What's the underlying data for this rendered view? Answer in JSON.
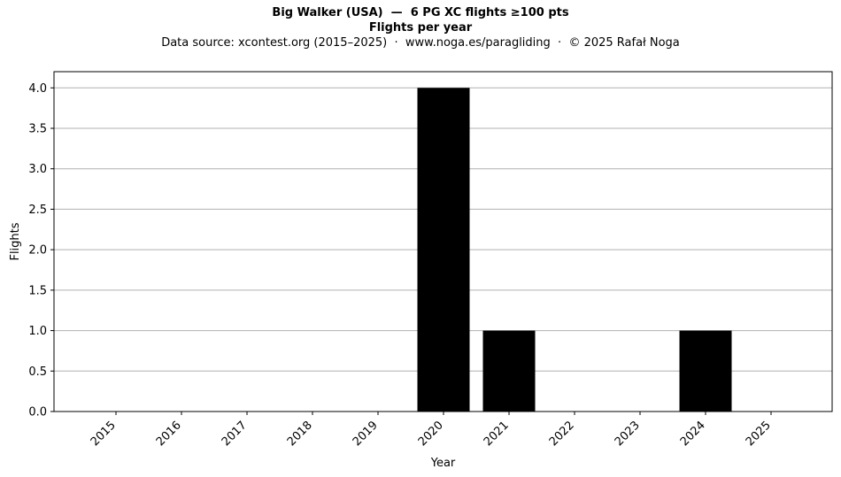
{
  "title": "Big Walker (USA)  —  6 PG XC flights ≥100 pts",
  "subtitle": "Flights per year",
  "source_note": "Data source: xcontest.org (2015–2025)  ·  www.noga.es/paragliding  ·  © 2025 Rafał Noga",
  "chart_data": {
    "type": "bar",
    "categories": [
      "2015",
      "2016",
      "2017",
      "2018",
      "2019",
      "2020",
      "2021",
      "2022",
      "2023",
      "2024",
      "2025"
    ],
    "values": [
      0,
      0,
      0,
      0,
      0,
      4,
      1,
      0,
      0,
      1,
      0
    ],
    "xlabel": "Year",
    "ylabel": "Flights",
    "ylim": [
      0,
      4.2
    ],
    "yticks": [
      "0.0",
      "0.5",
      "1.0",
      "1.5",
      "2.0",
      "2.5",
      "3.0",
      "3.5",
      "4.0"
    ],
    "grid": "y-axis horizontal lines",
    "legend": "none",
    "bar_color": "#000000",
    "grid_color": "#b0b0b0"
  }
}
